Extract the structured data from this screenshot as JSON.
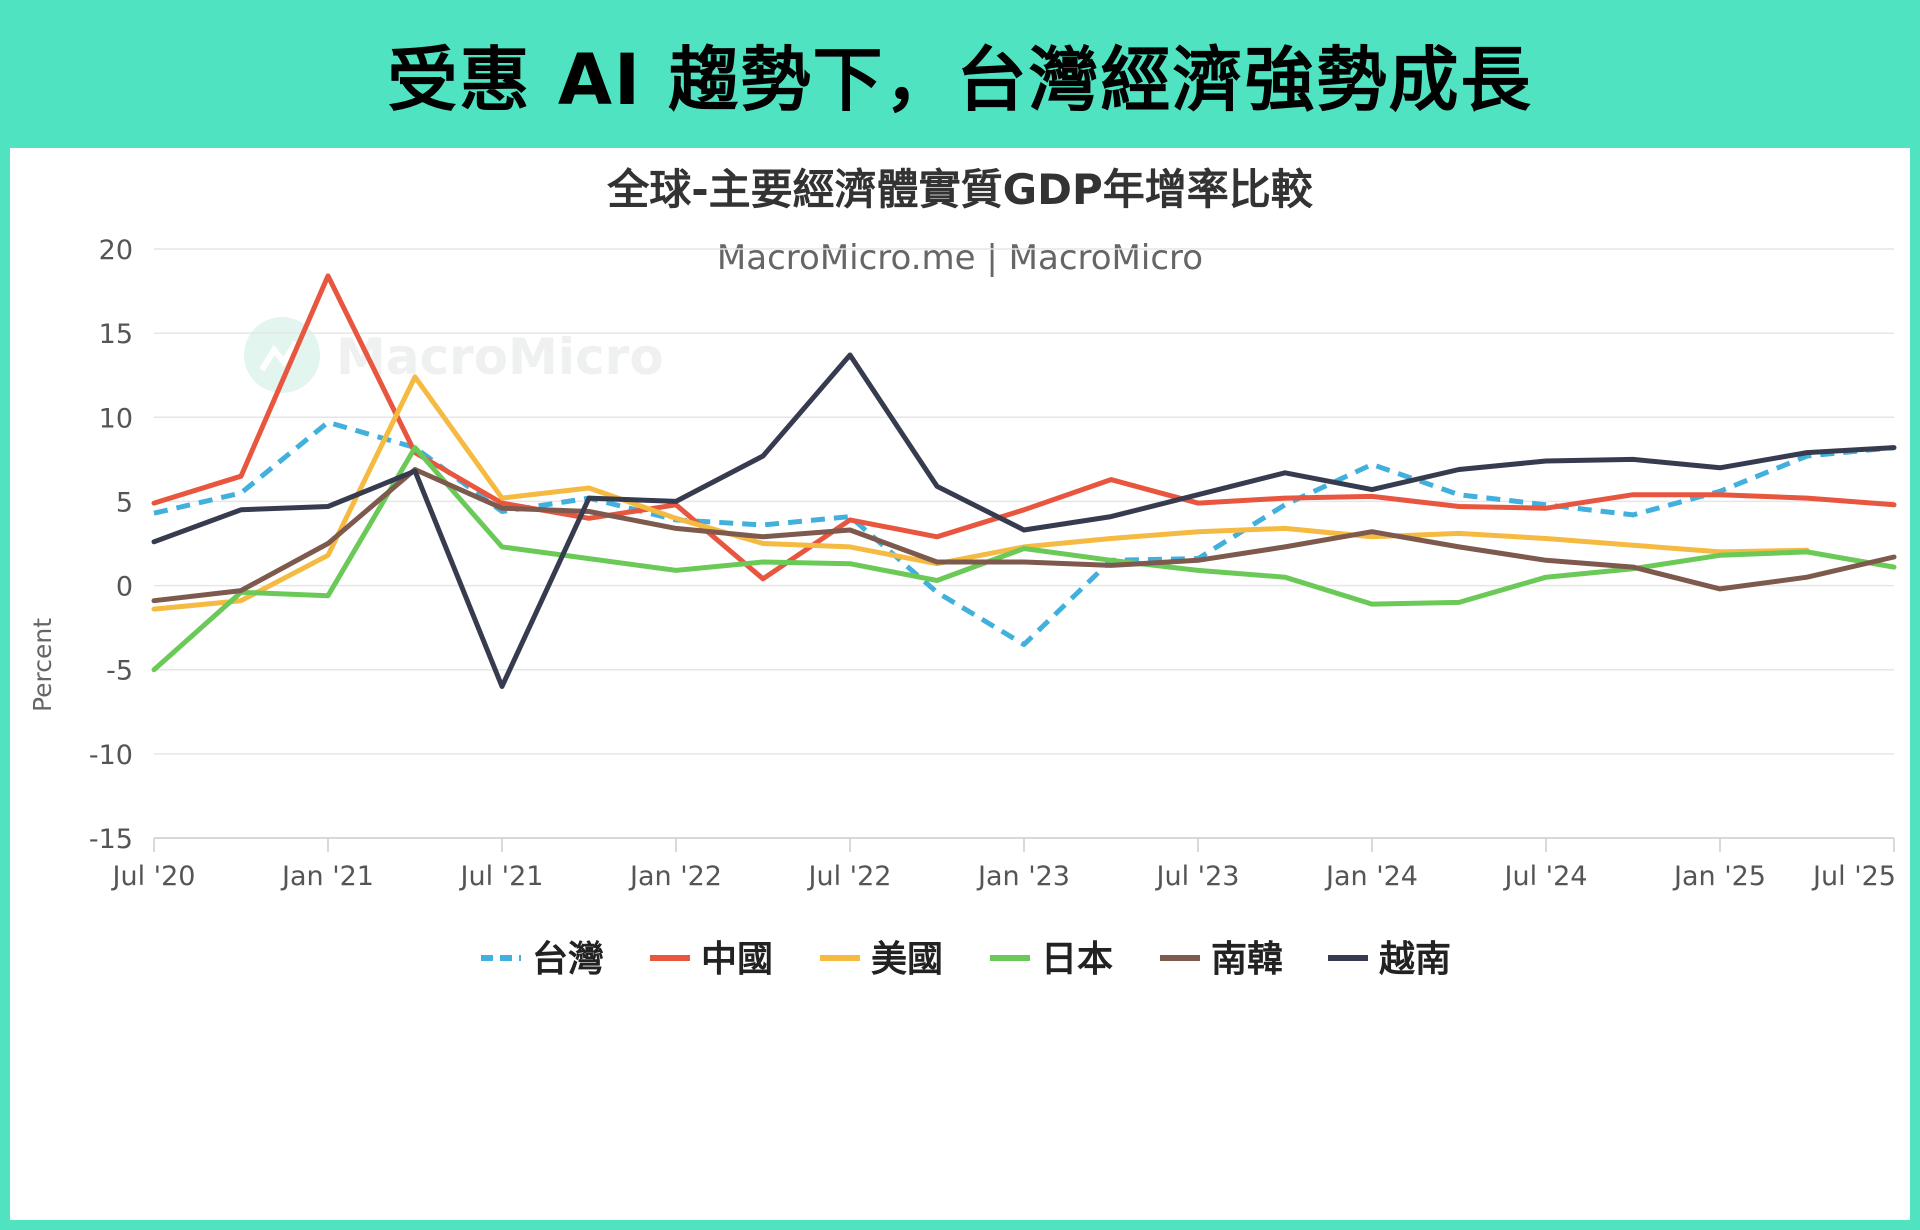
{
  "banner": {
    "title": "受惠 AI 趨勢下，台灣經濟強勢成長"
  },
  "watermark": {
    "text": "MacroMicro"
  },
  "chart_data": {
    "type": "line",
    "title": "全球-主要經濟體實質GDP年增率比較",
    "subtitle": "MacroMicro.me | MacroMicro",
    "ylabel": "Percent",
    "ylim": [
      -15,
      20
    ],
    "yticks": [
      20,
      15,
      10,
      5,
      0,
      -5,
      -10,
      -15
    ],
    "grid": true,
    "legend_position": "bottom",
    "x_tick_labels": [
      "Jul '20",
      "Jan '21",
      "Jul '21",
      "Jan '22",
      "Jul '22",
      "Jan '23",
      "Jul '23",
      "Jan '24",
      "Jul '24",
      "Jan '25",
      "Jul '25"
    ],
    "x": [
      "2020-07-01",
      "2020-10-01",
      "2021-01-01",
      "2021-04-01",
      "2021-07-01",
      "2021-10-01",
      "2022-01-01",
      "2022-04-01",
      "2022-07-01",
      "2022-10-01",
      "2023-01-01",
      "2023-04-01",
      "2023-07-01",
      "2023-10-01",
      "2024-01-01",
      "2024-04-01",
      "2024-07-01",
      "2024-10-01",
      "2025-01-01",
      "2025-04-01",
      "2025-07-01"
    ],
    "series": [
      {
        "name": "台灣",
        "color": "#41b0dd",
        "dashed": true,
        "values": [
          4.3,
          5.5,
          9.7,
          8.2,
          4.4,
          5.2,
          3.9,
          3.6,
          4.1,
          -0.4,
          -3.5,
          1.5,
          1.6,
          4.8,
          7.2,
          5.4,
          4.8,
          4.2,
          5.6,
          7.7,
          8.2
        ]
      },
      {
        "name": "中國",
        "color": "#e8563f",
        "dashed": false,
        "values": [
          4.9,
          6.5,
          18.4,
          7.9,
          4.9,
          4.0,
          4.8,
          0.4,
          3.9,
          2.9,
          4.5,
          6.3,
          4.9,
          5.2,
          5.3,
          4.7,
          4.6,
          5.4,
          5.4,
          5.2,
          4.8
        ]
      },
      {
        "name": "美國",
        "color": "#f5ba42",
        "dashed": false,
        "values": [
          -1.4,
          -0.9,
          1.8,
          12.4,
          5.2,
          5.8,
          4.0,
          2.5,
          2.3,
          1.3,
          2.3,
          2.8,
          3.2,
          3.4,
          2.9,
          3.1,
          2.8,
          2.4,
          2.0,
          2.1,
          null
        ]
      },
      {
        "name": "日本",
        "color": "#6bc957",
        "dashed": false,
        "values": [
          -5.0,
          -0.4,
          -0.6,
          8.2,
          2.3,
          1.6,
          0.9,
          1.4,
          1.3,
          0.3,
          2.2,
          1.5,
          0.9,
          0.5,
          -1.1,
          -1.0,
          0.5,
          1.0,
          1.8,
          2.0,
          1.1
        ]
      },
      {
        "name": "南韓",
        "color": "#7d5a4d",
        "dashed": false,
        "values": [
          -0.9,
          -0.3,
          2.5,
          6.9,
          4.6,
          4.4,
          3.4,
          2.9,
          3.3,
          1.4,
          1.4,
          1.2,
          1.5,
          2.3,
          3.2,
          2.3,
          1.5,
          1.1,
          -0.2,
          0.5,
          1.7
        ]
      },
      {
        "name": "越南",
        "color": "#363b4f",
        "dashed": false,
        "values": [
          2.6,
          4.5,
          4.7,
          6.8,
          -6.0,
          5.2,
          5.0,
          7.7,
          13.7,
          5.9,
          3.3,
          4.1,
          5.4,
          6.7,
          5.7,
          6.9,
          7.4,
          7.5,
          7.0,
          7.9,
          8.2
        ]
      }
    ]
  }
}
